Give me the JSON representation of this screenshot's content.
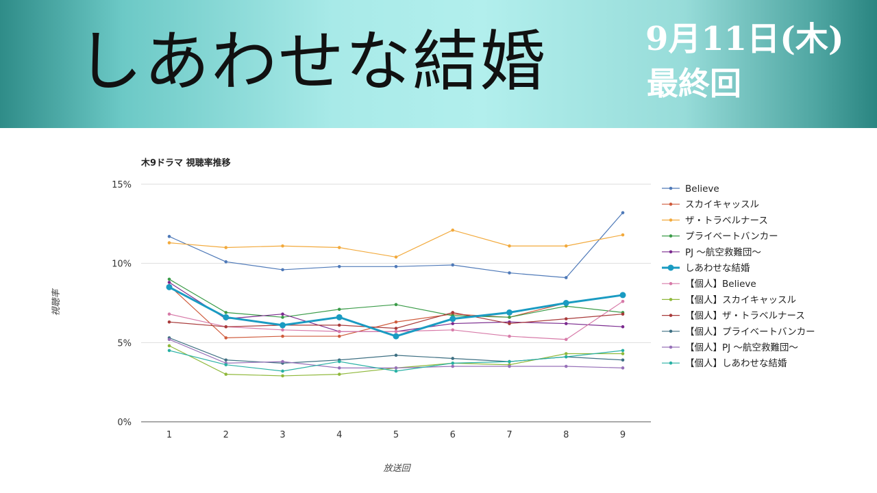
{
  "header": {
    "title": "しあわせな結婚",
    "air_date": "9月11日(木)",
    "episode": "最終回"
  },
  "chart_data": {
    "type": "line",
    "title": "木9ドラマ 視聴率推移",
    "xlabel": "放送回",
    "ylabel": "視聴率",
    "x": [
      1,
      2,
      3,
      4,
      5,
      6,
      7,
      8,
      9
    ],
    "ylim": [
      0,
      15
    ],
    "yticks": [
      "0%",
      "5%",
      "10%",
      "15%"
    ],
    "grid": true,
    "legend_position": "right",
    "series": [
      {
        "name": "Believe",
        "color": "#4e79b8",
        "values": [
          11.7,
          10.1,
          9.6,
          9.8,
          9.8,
          9.9,
          9.4,
          9.1,
          13.2
        ]
      },
      {
        "name": "スカイキャッスル",
        "color": "#cf5b3c",
        "values": [
          8.6,
          5.3,
          5.4,
          5.4,
          6.3,
          6.8,
          6.6,
          7.5,
          8.0
        ]
      },
      {
        "name": "ザ・トラベルナース",
        "color": "#f2a93b",
        "values": [
          11.3,
          11.0,
          11.1,
          11.0,
          10.4,
          12.1,
          11.1,
          11.1,
          11.8
        ]
      },
      {
        "name": "プライベートバンカー",
        "color": "#3a9b48",
        "values": [
          9.0,
          6.9,
          6.6,
          7.1,
          7.4,
          6.7,
          6.6,
          7.3,
          6.9
        ]
      },
      {
        "name": "PJ 〜航空救難団〜",
        "color": "#7a2a8e",
        "values": [
          8.8,
          6.5,
          6.8,
          5.7,
          5.7,
          6.2,
          6.3,
          6.2,
          6.0
        ]
      },
      {
        "name": "しあわせな結婚",
        "color": "#1a9bc2",
        "bold": true,
        "values": [
          8.5,
          6.6,
          6.1,
          6.6,
          5.4,
          6.5,
          6.9,
          7.5,
          8.0
        ]
      },
      {
        "name": "【個人】Believe",
        "color": "#d77aa8",
        "values": [
          6.8,
          6.0,
          5.8,
          5.7,
          5.7,
          5.8,
          5.4,
          5.2,
          7.6
        ]
      },
      {
        "name": "【個人】スカイキャッスル",
        "color": "#8fb83a",
        "values": [
          4.8,
          3.0,
          2.9,
          3.0,
          3.4,
          3.7,
          3.6,
          4.3,
          4.3
        ]
      },
      {
        "name": "【個人】ザ・トラベルナース",
        "color": "#a83a3a",
        "values": [
          6.3,
          6.0,
          6.1,
          6.1,
          5.9,
          6.9,
          6.2,
          6.5,
          6.8
        ]
      },
      {
        "name": "【個人】プライベートバンカー",
        "color": "#3d6f82",
        "values": [
          5.3,
          3.9,
          3.7,
          3.9,
          4.2,
          4.0,
          3.8,
          4.1,
          3.9
        ]
      },
      {
        "name": "【個人】PJ 〜航空救難団〜",
        "color": "#9670b8",
        "values": [
          5.2,
          3.7,
          3.8,
          3.4,
          3.4,
          3.5,
          3.5,
          3.5,
          3.4
        ]
      },
      {
        "name": "【個人】しあわせな結婚",
        "color": "#27b0a4",
        "values": [
          4.5,
          3.6,
          3.2,
          3.8,
          3.2,
          3.7,
          3.8,
          4.1,
          4.5
        ]
      }
    ]
  }
}
